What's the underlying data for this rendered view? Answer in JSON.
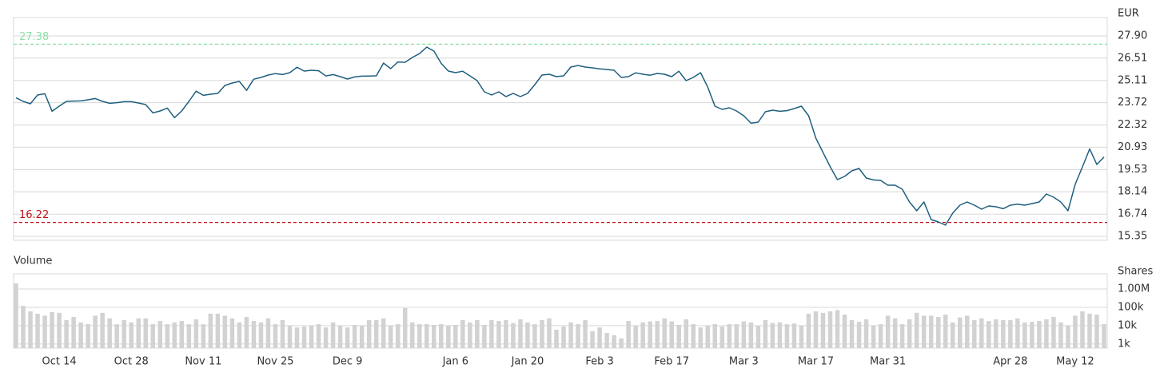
{
  "chart_data": [
    {
      "type": "line",
      "y_label": "EUR",
      "color": "#1f5f7f",
      "ylim": [
        15.1,
        29.05
      ],
      "yticks": [
        {
          "value": 27.9,
          "label": "27.90"
        },
        26.51,
        25.11,
        23.72,
        22.32,
        20.93,
        19.53,
        18.14,
        16.74,
        15.35
      ],
      "grid": true,
      "reference_lines": [
        {
          "value": 27.38,
          "color": "#8fe0a8"
        },
        {
          "value": 16.22,
          "color": "#c0101a"
        }
      ],
      "values": [
        24.03,
        23.8,
        23.65,
        24.2,
        24.28,
        23.18,
        23.5,
        23.8,
        23.82,
        23.83,
        23.9,
        23.98,
        23.8,
        23.68,
        23.72,
        23.78,
        23.78,
        23.7,
        23.6,
        23.08,
        23.2,
        23.38,
        22.78,
        23.2,
        23.8,
        24.44,
        24.18,
        24.25,
        24.3,
        24.8,
        24.95,
        25.05,
        24.49,
        25.19,
        25.3,
        25.45,
        25.54,
        25.48,
        25.6,
        25.94,
        25.7,
        25.75,
        25.72,
        25.39,
        25.48,
        25.35,
        25.2,
        25.33,
        25.38,
        25.39,
        25.4,
        26.2,
        25.85,
        26.27,
        26.25,
        26.55,
        26.79,
        27.2,
        26.95,
        26.19,
        25.7,
        25.6,
        25.69,
        25.4,
        25.1,
        24.4,
        24.2,
        24.4,
        24.1,
        24.3,
        24.1,
        24.3,
        24.85,
        25.45,
        25.5,
        25.35,
        25.4,
        25.95,
        26.05,
        25.95,
        25.9,
        25.84,
        25.8,
        25.75,
        25.3,
        25.35,
        25.59,
        25.5,
        25.44,
        25.55,
        25.5,
        25.35,
        25.69,
        25.1,
        25.3,
        25.6,
        24.69,
        23.5,
        23.3,
        23.4,
        23.2,
        22.9,
        22.43,
        22.5,
        23.15,
        23.25,
        23.18,
        23.22,
        23.35,
        23.5,
        22.9,
        21.5,
        20.6,
        19.7,
        18.9,
        19.1,
        19.45,
        19.6,
        19.0,
        18.88,
        18.85,
        18.55,
        18.55,
        18.3,
        17.5,
        16.95,
        17.5,
        16.4,
        16.25,
        16.05,
        16.8,
        17.3,
        17.5,
        17.3,
        17.05,
        17.25,
        17.2,
        17.08,
        17.3,
        17.36,
        17.3,
        17.4,
        17.5,
        18.0,
        17.8,
        17.5,
        16.95,
        18.6,
        19.7,
        20.82,
        19.85,
        20.32
      ]
    },
    {
      "type": "bar",
      "title": "Volume",
      "y_label": "Shares",
      "color": "#d2d2d2",
      "log_scale": true,
      "ylim": [
        600,
        6700000
      ],
      "yticks": [
        {
          "value": 1000000,
          "label": "1.00M"
        },
        {
          "value": 100000,
          "label": "100k"
        },
        {
          "value": 10000,
          "label": "10k"
        },
        {
          "value": 1000,
          "label": "1k"
        }
      ],
      "grid": true,
      "categories": [
        null,
        null,
        null,
        null,
        null,
        null,
        "Oct 14",
        null,
        null,
        null,
        null,
        null,
        null,
        null,
        null,
        null,
        "Oct 28",
        null,
        null,
        null,
        null,
        null,
        null,
        null,
        null,
        null,
        "Nov 11",
        null,
        null,
        null,
        null,
        null,
        null,
        null,
        null,
        null,
        "Nov 25",
        null,
        null,
        null,
        null,
        null,
        null,
        null,
        null,
        null,
        "Dec 9",
        null,
        null,
        null,
        null,
        null,
        null,
        null,
        null,
        null,
        null,
        null,
        null,
        null,
        null,
        "Jan 6",
        null,
        null,
        null,
        null,
        null,
        null,
        null,
        null,
        null,
        "Jan 20",
        null,
        null,
        null,
        null,
        null,
        null,
        null,
        null,
        null,
        "Feb 3",
        null,
        null,
        null,
        null,
        null,
        null,
        null,
        null,
        null,
        "Feb 17",
        null,
        null,
        null,
        null,
        null,
        null,
        null,
        null,
        null,
        "Mar 3",
        null,
        null,
        null,
        null,
        null,
        null,
        null,
        null,
        null,
        "Mar 17",
        null,
        null,
        null,
        null,
        null,
        null,
        null,
        null,
        null,
        "Mar 31",
        null,
        null,
        null,
        null,
        null,
        null,
        null,
        null,
        null,
        null,
        null,
        null,
        null,
        null,
        null,
        null,
        "Apr 28",
        null,
        null,
        null,
        null,
        null,
        null,
        null,
        null,
        "May 12",
        null,
        null,
        null,
        null
      ],
      "values": [
        2000000,
        120000,
        60000,
        45000,
        35000,
        55000,
        50000,
        20000,
        30000,
        15000,
        12000,
        35000,
        50000,
        25000,
        12000,
        20000,
        15000,
        25000,
        25000,
        12000,
        18000,
        12000,
        15000,
        18000,
        12000,
        22000,
        12000,
        45000,
        45000,
        35000,
        25000,
        15000,
        30000,
        18000,
        15000,
        25000,
        12000,
        20000,
        10000,
        8000,
        9000,
        10000,
        12000,
        8000,
        15000,
        10000,
        8000,
        11000,
        10000,
        20000,
        20000,
        25000,
        10000,
        12000,
        90000,
        15000,
        12000,
        12000,
        11000,
        12000,
        10000,
        11000,
        20000,
        15000,
        20000,
        11000,
        20000,
        18000,
        20000,
        14000,
        22000,
        15000,
        12000,
        20000,
        25000,
        6000,
        9000,
        15000,
        12000,
        20000,
        5000,
        8000,
        4000,
        3000,
        2000,
        18000,
        10000,
        15000,
        17000,
        18000,
        25000,
        17000,
        11000,
        22000,
        12000,
        8000,
        10000,
        12000,
        9000,
        12000,
        12000,
        17000,
        15000,
        10000,
        20000,
        14000,
        15000,
        12000,
        13000,
        10000,
        45000,
        60000,
        50000,
        60000,
        70000,
        40000,
        20000,
        16000,
        22000,
        10000,
        12000,
        35000,
        25000,
        12000,
        22000,
        50000,
        35000,
        35000,
        30000,
        40000,
        15000,
        28000,
        35000,
        20000,
        25000,
        18000,
        22000,
        20000,
        20000,
        25000,
        15000,
        16000,
        18000,
        22000,
        30000,
        15000,
        10000,
        35000,
        60000,
        45000,
        40000,
        12000
      ]
    }
  ]
}
